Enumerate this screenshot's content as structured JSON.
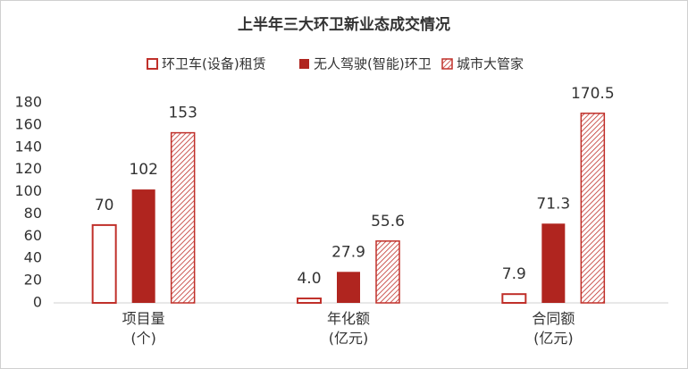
{
  "chart_data": {
    "type": "bar",
    "title": "上半年三大环卫新业态成交情况",
    "categories": [
      "项目量\n(个)",
      "年化额\n(亿元)",
      "合同额\n(亿元)"
    ],
    "series": [
      {
        "name": "环卫车(设备)租赁",
        "color": "#c0302a",
        "style": "outline",
        "values": [
          70,
          4,
          7.9
        ],
        "value_labels": [
          "70",
          "4.0",
          "7.9"
        ]
      },
      {
        "name": "无人驾驶(智能)环卫",
        "color": "#b0251f",
        "style": "solid",
        "values": [
          102,
          27.9,
          71.3
        ]
      },
      {
        "name": "城市大管家",
        "color": "#c0302a",
        "style": "hatch",
        "values": [
          153,
          55.6,
          170.5
        ]
      }
    ],
    "ylim": [
      0,
      180
    ],
    "yticks": [
      0,
      20,
      40,
      60,
      80,
      100,
      120,
      140,
      160,
      180
    ],
    "grid": false,
    "legend": "top"
  }
}
